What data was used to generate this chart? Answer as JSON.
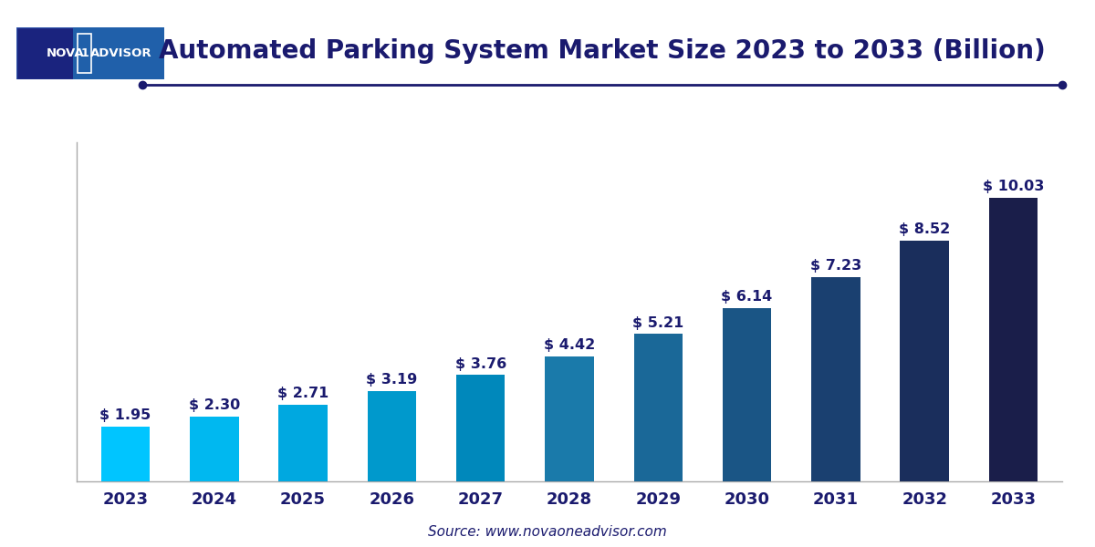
{
  "years": [
    "2023",
    "2024",
    "2025",
    "2026",
    "2027",
    "2028",
    "2029",
    "2030",
    "2031",
    "2032",
    "2033"
  ],
  "values": [
    1.95,
    2.3,
    2.71,
    3.19,
    3.76,
    4.42,
    5.21,
    6.14,
    7.23,
    8.52,
    10.03
  ],
  "bar_colors": [
    "#00C5FF",
    "#00B8F0",
    "#00A8E0",
    "#0099CC",
    "#0088BB",
    "#1A7AAA",
    "#1A6898",
    "#1A5585",
    "#1A4070",
    "#1A2E5C",
    "#1A1E4A"
  ],
  "title": "Automated Parking System Market Size 2023 to 2033 (Billion)",
  "title_color": "#1A1A6E",
  "title_fontsize": 20,
  "source_text": "Source: www.novaoneadvisor.com",
  "label_color": "#1A1A6E",
  "label_fontsize": 11.5,
  "tick_color": "#1A1A6E",
  "tick_fontsize": 13,
  "background_color": "#FFFFFF",
  "plot_bg_color": "#FFFFFF",
  "grid_color": "#CCCCCC",
  "ylim": [
    0,
    12.0
  ],
  "bar_width": 0.55,
  "border_color": "#AAAAAA",
  "line_color": "#1A1A6E",
  "logo_bg": "#1A237E",
  "logo_highlight": "#2979C0"
}
